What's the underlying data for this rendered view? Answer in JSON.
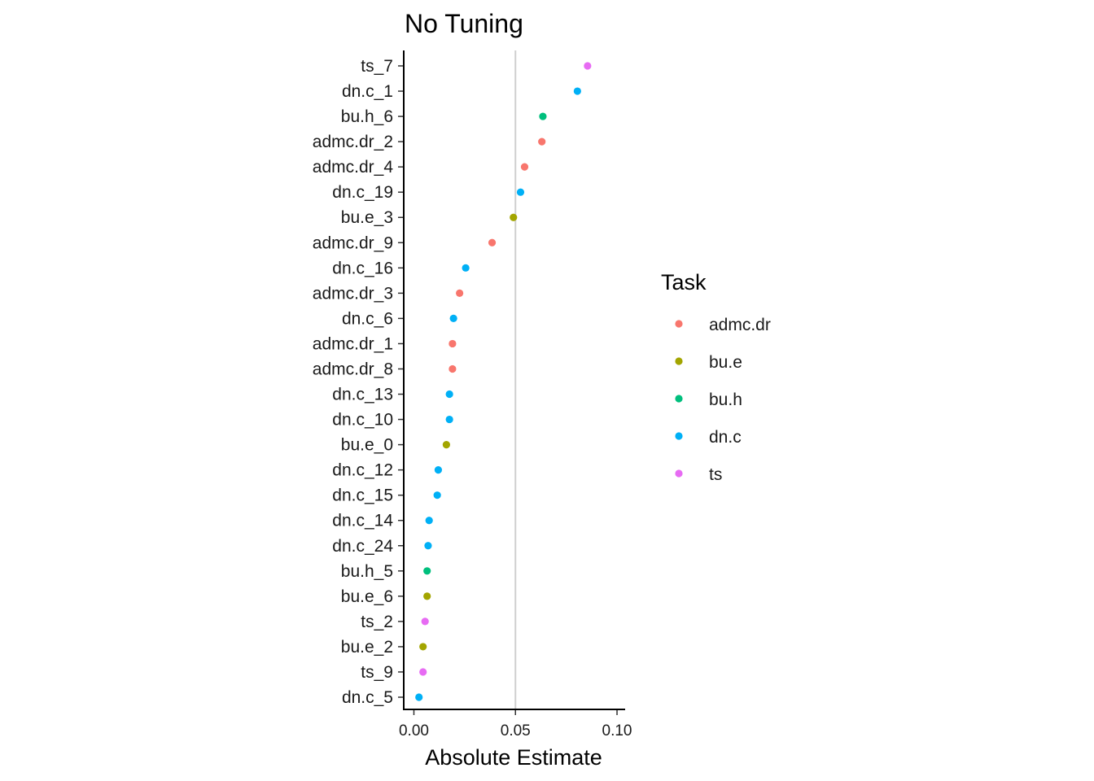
{
  "chart_data": {
    "type": "scatter",
    "title": "No Tuning",
    "xlabel": "Absolute Estimate",
    "ylabel": "",
    "xlim": [
      -0.005,
      0.104
    ],
    "xticks": [
      0.0,
      0.05,
      0.1
    ],
    "xtick_labels": [
      "0.00",
      "0.05",
      "0.10"
    ],
    "reference_line_x": 0.05,
    "legend": {
      "title": "Task",
      "entries": [
        {
          "name": "admc.dr",
          "color": "#F8766D"
        },
        {
          "name": "bu.e",
          "color": "#A3A500"
        },
        {
          "name": "bu.h",
          "color": "#00BF7D"
        },
        {
          "name": "dn.c",
          "color": "#00B0F6"
        },
        {
          "name": "ts",
          "color": "#E76BF3"
        }
      ]
    },
    "points": [
      {
        "label": "ts_7",
        "task": "ts",
        "value": 0.0855
      },
      {
        "label": "dn.c_1",
        "task": "dn.c",
        "value": 0.0805
      },
      {
        "label": "bu.h_6",
        "task": "bu.h",
        "value": 0.0635
      },
      {
        "label": "admc.dr_2",
        "task": "admc.dr",
        "value": 0.063
      },
      {
        "label": "admc.dr_4",
        "task": "admc.dr",
        "value": 0.0545
      },
      {
        "label": "dn.c_19",
        "task": "dn.c",
        "value": 0.0525
      },
      {
        "label": "bu.e_3",
        "task": "bu.e",
        "value": 0.049
      },
      {
        "label": "admc.dr_9",
        "task": "admc.dr",
        "value": 0.0385
      },
      {
        "label": "dn.c_16",
        "task": "dn.c",
        "value": 0.0255
      },
      {
        "label": "admc.dr_3",
        "task": "admc.dr",
        "value": 0.0225
      },
      {
        "label": "dn.c_6",
        "task": "dn.c",
        "value": 0.0195
      },
      {
        "label": "admc.dr_1",
        "task": "admc.dr",
        "value": 0.019
      },
      {
        "label": "admc.dr_8",
        "task": "admc.dr",
        "value": 0.019
      },
      {
        "label": "dn.c_13",
        "task": "dn.c",
        "value": 0.0175
      },
      {
        "label": "dn.c_10",
        "task": "dn.c",
        "value": 0.0175
      },
      {
        "label": "bu.e_0",
        "task": "bu.e",
        "value": 0.016
      },
      {
        "label": "dn.c_12",
        "task": "dn.c",
        "value": 0.012
      },
      {
        "label": "dn.c_15",
        "task": "dn.c",
        "value": 0.0115
      },
      {
        "label": "dn.c_14",
        "task": "dn.c",
        "value": 0.0075
      },
      {
        "label": "dn.c_24",
        "task": "dn.c",
        "value": 0.007
      },
      {
        "label": "bu.h_5",
        "task": "bu.h",
        "value": 0.0065
      },
      {
        "label": "bu.e_6",
        "task": "bu.e",
        "value": 0.0065
      },
      {
        "label": "ts_2",
        "task": "ts",
        "value": 0.0055
      },
      {
        "label": "bu.e_2",
        "task": "bu.e",
        "value": 0.0045
      },
      {
        "label": "ts_9",
        "task": "ts",
        "value": 0.0045
      },
      {
        "label": "dn.c_5",
        "task": "dn.c",
        "value": 0.0025
      }
    ]
  }
}
